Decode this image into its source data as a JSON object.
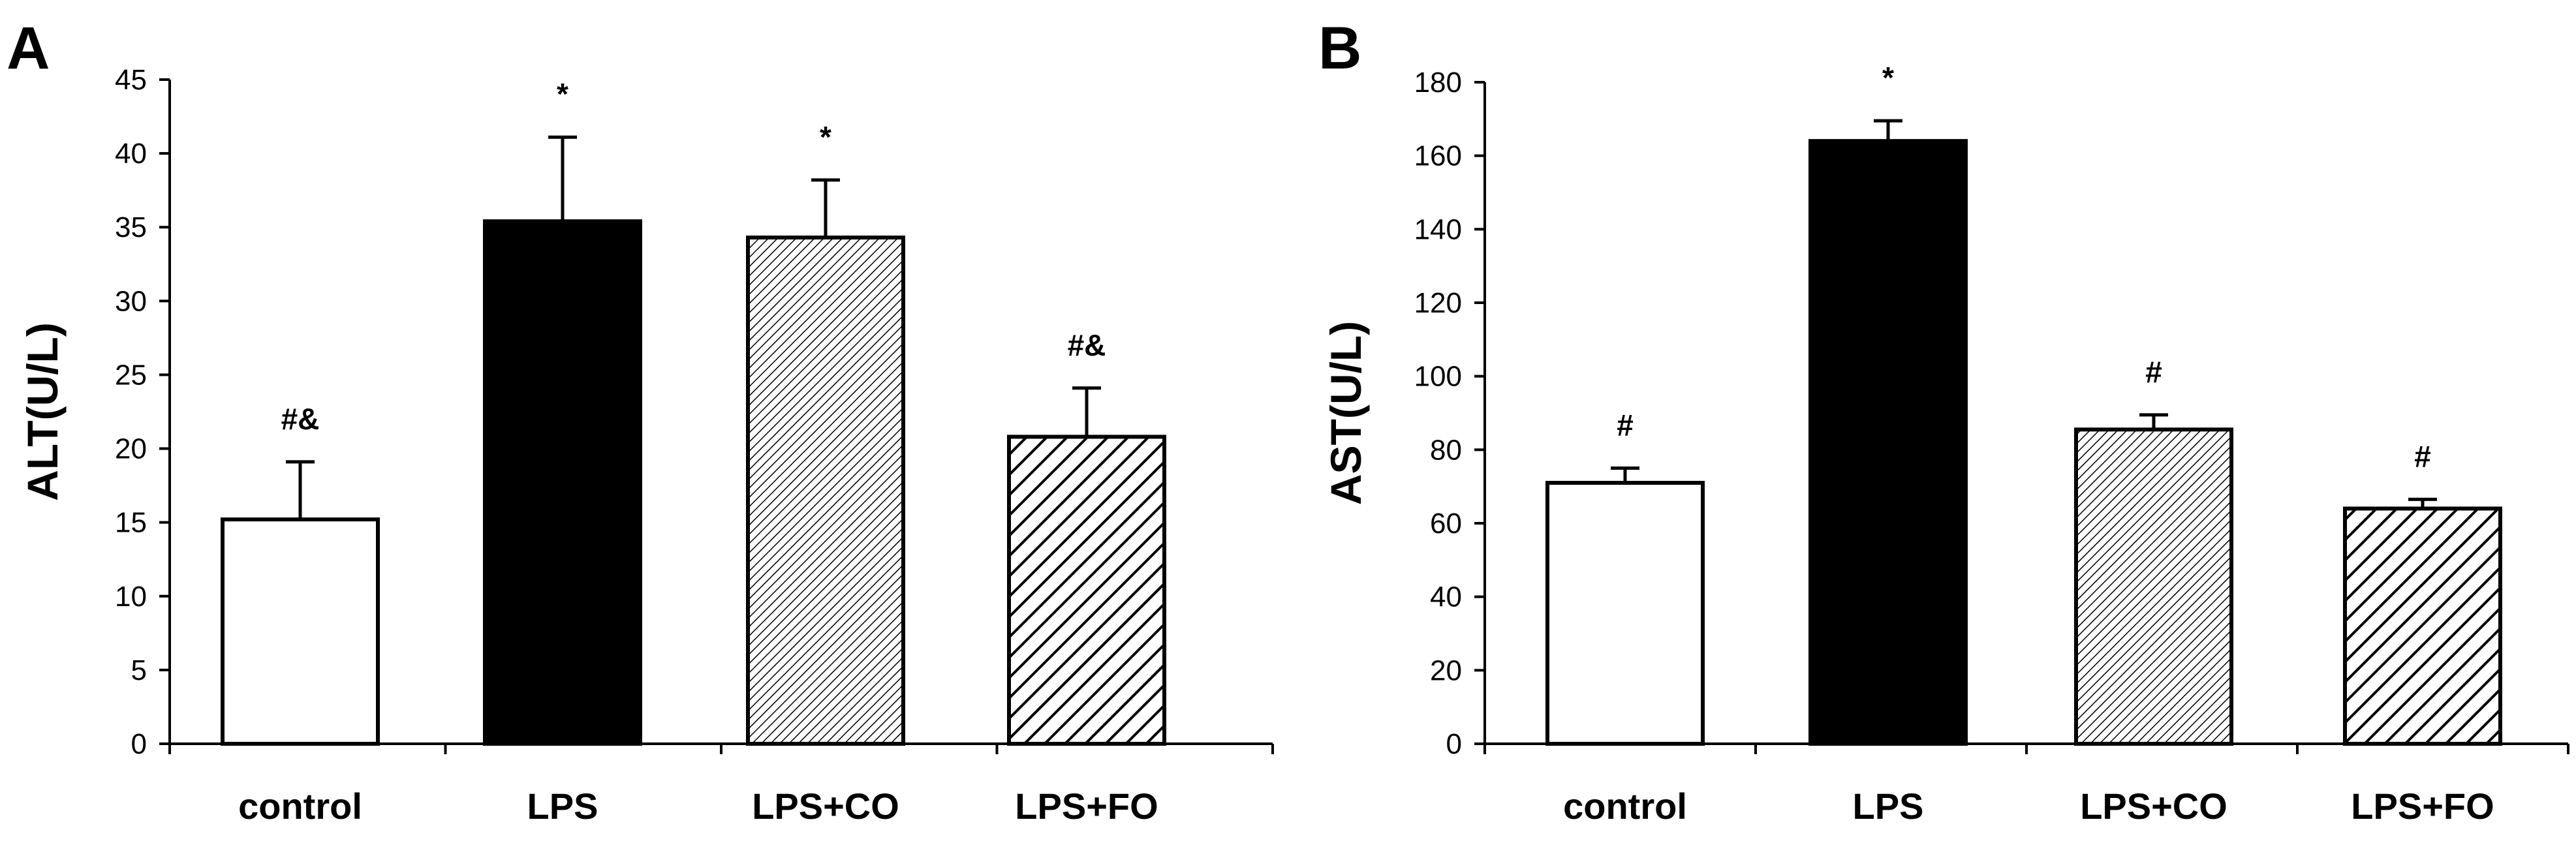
{
  "colors": {
    "background": "#ffffff",
    "ink": "#000000",
    "white_fill": "#ffffff",
    "black_fill": "#000000"
  },
  "chart_data": [
    {
      "panel": "A",
      "type": "bar",
      "title": "",
      "xlabel": "",
      "ylabel": "ALT(U/L)",
      "ylim": [
        0,
        45
      ],
      "yticks": [
        0,
        5,
        10,
        15,
        20,
        25,
        30,
        35,
        40,
        45
      ],
      "categories": [
        "control",
        "LPS",
        "LPS+CO",
        "LPS+FO"
      ],
      "values": [
        15.2,
        35.4,
        34.3,
        20.8
      ],
      "errors": [
        3.9,
        5.7,
        3.9,
        3.3
      ],
      "annotations": [
        "#&",
        "*",
        "*",
        "#&"
      ],
      "patterns": [
        "white",
        "black",
        "fine-hatch",
        "coarse-hatch"
      ],
      "grid": false
    },
    {
      "panel": "B",
      "type": "bar",
      "title": "",
      "xlabel": "",
      "ylabel": "AST(U/L)",
      "ylim": [
        0,
        180
      ],
      "yticks": [
        0,
        20,
        40,
        60,
        80,
        100,
        120,
        140,
        160,
        180
      ],
      "categories": [
        "control",
        "LPS",
        "LPS+CO",
        "LPS+FO"
      ],
      "values": [
        71,
        164,
        85.5,
        64
      ],
      "errors": [
        4,
        5.5,
        4,
        2.5
      ],
      "annotations": [
        "#",
        "*",
        "#",
        "#"
      ],
      "patterns": [
        "white",
        "black",
        "fine-hatch",
        "coarse-hatch"
      ],
      "grid": false
    }
  ]
}
